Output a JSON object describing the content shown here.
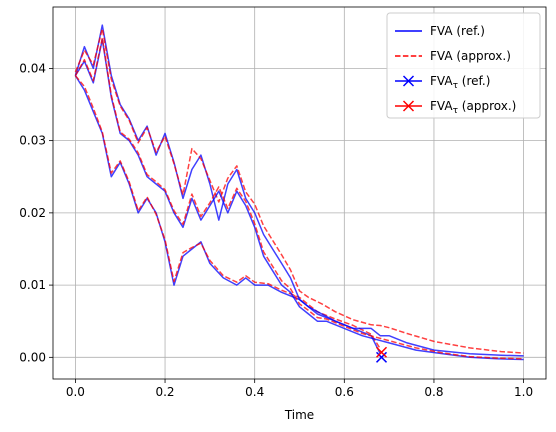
{
  "chart_data": {
    "type": "line",
    "title": "",
    "xlabel": "Time",
    "ylabel": "",
    "xlim": [
      -0.05,
      1.05
    ],
    "ylim": [
      -0.003,
      0.0485
    ],
    "xticks": [
      0.0,
      0.2,
      0.4,
      0.6,
      0.8,
      1.0
    ],
    "xtick_labels": [
      "0.0",
      "0.2",
      "0.4",
      "0.6",
      "0.8",
      "1.0"
    ],
    "yticks": [
      0.0,
      0.01,
      0.02,
      0.03,
      0.04
    ],
    "ytick_labels": [
      "0.00",
      "0.01",
      "0.02",
      "0.03",
      "0.04"
    ],
    "grid": true,
    "legend_position": "top-right",
    "legend": [
      {
        "label": "FVA (ref.)",
        "color": "#0000ff",
        "style": "solid"
      },
      {
        "label": "FVA (approx.)",
        "color": "#ff0000",
        "style": "dashed"
      },
      {
        "label_main": "FVA",
        "label_sub": "τ",
        "label_rest": " (ref.)",
        "color": "#0000ff",
        "marker": "x"
      },
      {
        "label_main": "FVA",
        "label_sub": "τ",
        "label_rest": " (approx.)",
        "color": "#ff0000",
        "marker": "x"
      }
    ],
    "series": [
      {
        "name": "FVA (ref.)",
        "color": "#0000ff",
        "dash": false,
        "path_index": 1,
        "x": [
          0.0,
          0.02,
          0.04,
          0.06,
          0.08,
          0.1,
          0.12,
          0.14,
          0.16,
          0.18,
          0.2,
          0.22,
          0.24,
          0.26,
          0.28,
          0.3,
          0.33,
          0.36,
          0.38,
          0.4,
          0.43,
          0.46,
          0.5,
          0.54,
          0.58,
          0.62,
          0.66,
          0.68
        ],
        "y": [
          0.039,
          0.037,
          0.034,
          0.031,
          0.025,
          0.027,
          0.024,
          0.02,
          0.022,
          0.02,
          0.016,
          0.01,
          0.014,
          0.015,
          0.016,
          0.013,
          0.011,
          0.01,
          0.011,
          0.01,
          0.01,
          0.009,
          0.008,
          0.006,
          0.005,
          0.004,
          0.003,
          0.0005
        ]
      },
      {
        "name": "FVA (approx.)",
        "color": "#ff0000",
        "dash": true,
        "path_index": 1,
        "x": [
          0.0,
          0.02,
          0.04,
          0.06,
          0.08,
          0.1,
          0.12,
          0.14,
          0.16,
          0.18,
          0.2,
          0.22,
          0.24,
          0.26,
          0.28,
          0.3,
          0.33,
          0.36,
          0.38,
          0.4,
          0.43,
          0.46,
          0.5,
          0.54,
          0.58,
          0.62,
          0.66,
          0.68
        ],
        "y": [
          0.039,
          0.0375,
          0.0345,
          0.0312,
          0.0255,
          0.0272,
          0.0243,
          0.0203,
          0.0222,
          0.0198,
          0.0163,
          0.0105,
          0.0145,
          0.0152,
          0.0158,
          0.0134,
          0.0113,
          0.0104,
          0.0113,
          0.0104,
          0.0102,
          0.0093,
          0.0083,
          0.0063,
          0.0053,
          0.0044,
          0.0032,
          0.0012
        ]
      },
      {
        "name": "FVA (ref.)",
        "color": "#0000ff",
        "dash": false,
        "path_index": 2,
        "x": [
          0.0,
          0.02,
          0.04,
          0.06,
          0.08,
          0.1,
          0.12,
          0.14,
          0.16,
          0.18,
          0.2,
          0.22,
          0.24,
          0.26,
          0.28,
          0.3,
          0.32,
          0.34,
          0.36,
          0.38,
          0.4,
          0.42,
          0.44,
          0.46,
          0.48,
          0.5,
          0.52,
          0.55,
          0.58,
          0.62,
          0.66,
          0.68,
          0.7,
          0.74,
          0.8,
          0.88,
          0.95,
          1.0
        ],
        "y": [
          0.039,
          0.043,
          0.04,
          0.046,
          0.039,
          0.035,
          0.033,
          0.03,
          0.032,
          0.028,
          0.031,
          0.027,
          0.022,
          0.026,
          0.028,
          0.024,
          0.019,
          0.024,
          0.026,
          0.022,
          0.02,
          0.017,
          0.015,
          0.013,
          0.011,
          0.008,
          0.007,
          0.006,
          0.005,
          0.004,
          0.004,
          0.003,
          0.003,
          0.002,
          0.001,
          0.0005,
          0.0003,
          0.0002
        ]
      },
      {
        "name": "FVA (approx.)",
        "color": "#ff0000",
        "dash": true,
        "path_index": 2,
        "x": [
          0.0,
          0.02,
          0.04,
          0.06,
          0.08,
          0.1,
          0.12,
          0.14,
          0.16,
          0.18,
          0.2,
          0.22,
          0.24,
          0.26,
          0.28,
          0.3,
          0.32,
          0.34,
          0.36,
          0.38,
          0.4,
          0.42,
          0.44,
          0.46,
          0.48,
          0.5,
          0.52,
          0.55,
          0.58,
          0.62,
          0.66,
          0.68,
          0.7,
          0.74,
          0.8,
          0.88,
          0.95,
          1.0
        ],
        "y": [
          0.0395,
          0.0425,
          0.0405,
          0.0455,
          0.0385,
          0.0348,
          0.0328,
          0.0297,
          0.0318,
          0.0284,
          0.0306,
          0.0268,
          0.0225,
          0.0289,
          0.0275,
          0.0245,
          0.0215,
          0.0248,
          0.0265,
          0.0229,
          0.0212,
          0.0182,
          0.0162,
          0.0142,
          0.0121,
          0.0092,
          0.0083,
          0.0074,
          0.0063,
          0.0052,
          0.0045,
          0.0044,
          0.0041,
          0.0033,
          0.0022,
          0.0013,
          0.0008,
          0.0006
        ]
      },
      {
        "name": "FVA (ref.)",
        "color": "#0000ff",
        "dash": false,
        "path_index": 3,
        "x": [
          0.0,
          0.02,
          0.04,
          0.06,
          0.08,
          0.1,
          0.12,
          0.14,
          0.16,
          0.18,
          0.2,
          0.22,
          0.24,
          0.26,
          0.28,
          0.3,
          0.32,
          0.34,
          0.36,
          0.38,
          0.4,
          0.42,
          0.44,
          0.46,
          0.48,
          0.5,
          0.52,
          0.54,
          0.56,
          0.6,
          0.64,
          0.7,
          0.76,
          0.82,
          0.88,
          0.94,
          1.0
        ],
        "y": [
          0.039,
          0.041,
          0.038,
          0.044,
          0.036,
          0.031,
          0.03,
          0.028,
          0.025,
          0.024,
          0.023,
          0.02,
          0.018,
          0.022,
          0.019,
          0.021,
          0.023,
          0.02,
          0.023,
          0.021,
          0.018,
          0.014,
          0.012,
          0.01,
          0.009,
          0.007,
          0.006,
          0.005,
          0.005,
          0.004,
          0.003,
          0.002,
          0.001,
          0.0005,
          0.0,
          -0.0002,
          -0.0003
        ]
      },
      {
        "name": "FVA (approx.)",
        "color": "#ff0000",
        "dash": true,
        "path_index": 3,
        "x": [
          0.0,
          0.02,
          0.04,
          0.06,
          0.08,
          0.1,
          0.12,
          0.14,
          0.16,
          0.18,
          0.2,
          0.22,
          0.24,
          0.26,
          0.28,
          0.3,
          0.32,
          0.34,
          0.36,
          0.38,
          0.4,
          0.42,
          0.44,
          0.46,
          0.48,
          0.5,
          0.52,
          0.54,
          0.56,
          0.6,
          0.64,
          0.7,
          0.76,
          0.82,
          0.88,
          0.94,
          1.0
        ],
        "y": [
          0.039,
          0.0412,
          0.0383,
          0.0442,
          0.0363,
          0.0312,
          0.0302,
          0.0283,
          0.0253,
          0.0243,
          0.0232,
          0.0203,
          0.0184,
          0.0226,
          0.0195,
          0.0214,
          0.0236,
          0.0206,
          0.0234,
          0.0216,
          0.0185,
          0.0146,
          0.0126,
          0.0106,
          0.0095,
          0.0074,
          0.0065,
          0.0055,
          0.0053,
          0.0043,
          0.0033,
          0.0023,
          0.0013,
          0.0006,
          0.0001,
          -0.0001,
          -0.0002
        ]
      }
    ],
    "markers": [
      {
        "name": "FVA τ (ref.)",
        "color": "#0000ff",
        "x": 0.683,
        "y": 0.0
      },
      {
        "name": "FVA τ (approx.)",
        "color": "#ff0000",
        "x": 0.683,
        "y": 0.0007
      }
    ]
  }
}
